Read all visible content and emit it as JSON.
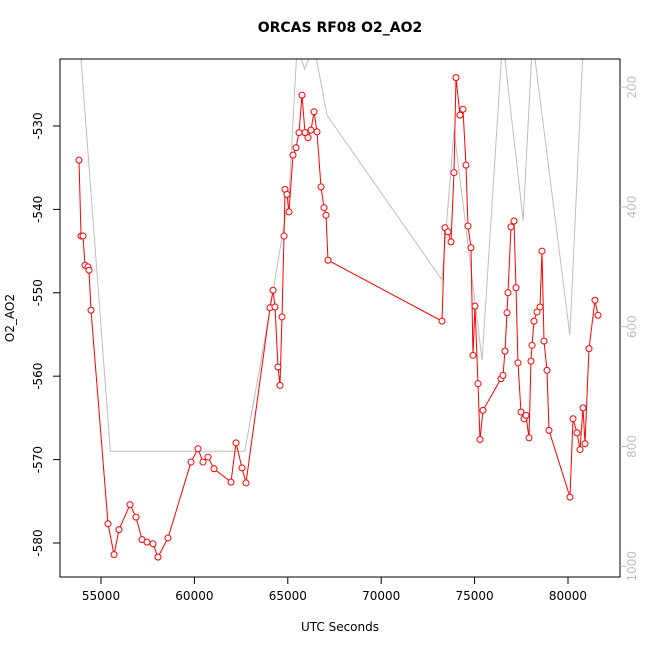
{
  "chart_data": {
    "type": "line",
    "title": "ORCAS RF08 O2_AO2",
    "xlabel": "UTC Seconds",
    "ylabel": "O2_AO2",
    "xlim": [
      52805,
      82784
    ],
    "xticks": [
      55000,
      60000,
      65000,
      70000,
      75000,
      80000
    ],
    "ylim": [
      -584.08,
      -521.97
    ],
    "yticks": [
      -580,
      -570,
      -560,
      -550,
      -540,
      -530
    ],
    "y2lim": [
      1018,
      153
    ],
    "y2ticks": [
      200,
      400,
      600,
      800,
      1000
    ],
    "series": [
      {
        "color": "#ff0000",
        "markers": true,
        "x": [
          53822,
          53930,
          54037,
          54144,
          54304,
          54358,
          54465,
          55375,
          55696,
          55964,
          56552,
          56874,
          57195,
          57463,
          57784,
          58051,
          58587,
          59818,
          60193,
          60460,
          60728,
          61049,
          61959,
          62227,
          62548,
          62762,
          64047,
          64208,
          64315,
          64475,
          64582,
          64690,
          64797,
          64850,
          64957,
          65064,
          65278,
          65439,
          65600,
          65760,
          65921,
          66081,
          66242,
          66403,
          66563,
          66777,
          66938,
          67045,
          67152,
          73255,
          73415,
          73576,
          73737,
          73897,
          74004,
          74218,
          74379,
          74539,
          74647,
          74807,
          74914,
          75021,
          75182,
          75289,
          75449,
          76413,
          76520,
          76627,
          76734,
          76788,
          76948,
          77109,
          77216,
          77323,
          77484,
          77645,
          77752,
          77912,
          78019,
          78073,
          78180,
          78340,
          78501,
          78608,
          78715,
          78876,
          78983,
          80107,
          80268,
          80482,
          80643,
          80803,
          80910,
          81124,
          81445,
          81606
        ],
        "values": [
          -534.1,
          -543.2,
          -543.2,
          -546.7,
          -546.9,
          -547.3,
          -552.1,
          -577.7,
          -581.4,
          -578.4,
          -575.4,
          -576.9,
          -579.6,
          -579.9,
          -580.1,
          -581.7,
          -579.4,
          -570.3,
          -568.7,
          -570.3,
          -569.7,
          -571.1,
          -572.7,
          -568.0,
          -571.0,
          -572.8,
          -551.8,
          -549.7,
          -551.7,
          -558.9,
          -561.1,
          -552.9,
          -543.2,
          -537.6,
          -538.2,
          -540.3,
          -533.5,
          -532.6,
          -530.8,
          -526.3,
          -530.8,
          -531.4,
          -530.5,
          -528.3,
          -530.7,
          -537.3,
          -539.8,
          -540.7,
          -546.1,
          -553.4,
          -542.2,
          -542.7,
          -543.9,
          -535.6,
          -524.2,
          -528.7,
          -528.0,
          -534.7,
          -542.0,
          -544.6,
          -557.5,
          -551.6,
          -560.9,
          -567.6,
          -564.1,
          -560.3,
          -559.9,
          -557.0,
          -552.4,
          -550.0,
          -542.1,
          -541.4,
          -549.4,
          -558.4,
          -564.3,
          -565.1,
          -564.7,
          -567.4,
          -558.2,
          -556.3,
          -553.4,
          -552.3,
          -551.7,
          -545.0,
          -555.8,
          -559.3,
          -566.5,
          -574.5,
          -565.1,
          -566.8,
          -568.8,
          -563.8,
          -568.1,
          -556.7,
          -550.9,
          -552.7
        ]
      },
      {
        "color": "#bebebe",
        "axis": "y2",
        "markers": false,
        "x": [
          53850,
          55500,
          62700,
          64047,
          65064,
          65500,
          65900,
          66400,
          67100,
          73255,
          73900,
          75400,
          76500,
          77600,
          78100,
          80100,
          80800
        ],
        "values": [
          120,
          808,
          808,
          572,
          380,
          130,
          170,
          130,
          247,
          522,
          272,
          656,
          120,
          422,
          120,
          614,
          140
        ]
      }
    ]
  }
}
